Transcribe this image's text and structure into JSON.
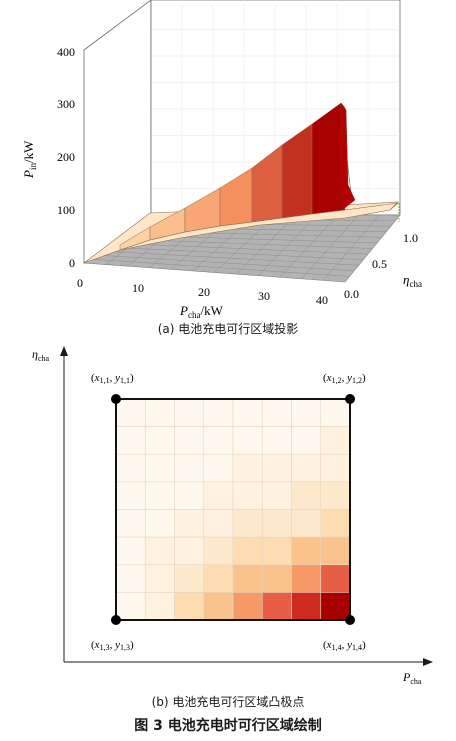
{
  "figure": {
    "panel_a": {
      "caption": "(a)  电池充电可行区域投影",
      "z_axis": {
        "label_main": "P",
        "label_sub": "in",
        "label_unit": "/kW",
        "ticks": [
          "0",
          "100",
          "200",
          "300",
          "400"
        ]
      },
      "x_axis": {
        "label_main": "P",
        "label_sub": "cha",
        "label_unit": "/kW",
        "ticks": [
          "0",
          "10",
          "20",
          "30",
          "40"
        ]
      },
      "y_axis": {
        "label_main": "η",
        "label_sub": "cha",
        "ticks": [
          "0.0",
          "0.5",
          "1.0"
        ]
      },
      "colors": {
        "floor": "#b0b0b0",
        "front_face": "#ffe2c2",
        "face_light": "#fdd3a6",
        "face_mid": "#f5905e",
        "face_dark": "#a90000",
        "edge": "#8e6e4a"
      }
    },
    "panel_b": {
      "caption": "(b)  电池充电可行区域凸极点",
      "x_axis_label_main": "P",
      "x_axis_label_sub": "cha",
      "y_axis_label_main": "η",
      "y_axis_label_sub": "cha",
      "vertices": {
        "top_left": {
          "x_sub": "1,1",
          "y_sub": "1,1"
        },
        "top_right": {
          "x_sub": "1,2",
          "y_sub": "1,2"
        },
        "bottom_left": {
          "x_sub": "1,3",
          "y_sub": "1,3"
        },
        "bottom_right": {
          "x_sub": "1,4",
          "y_sub": "1,4"
        }
      },
      "vertex_symbols": {
        "x": "x",
        "y": "y"
      }
    },
    "title": "图 3    电池充电时可行区域绘制"
  }
}
